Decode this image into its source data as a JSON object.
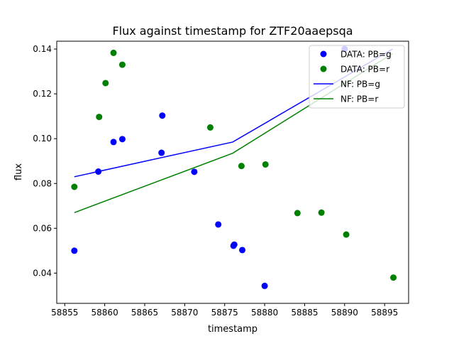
{
  "chart_data": {
    "type": "scatter",
    "title": "Flux against timestamp for ZTF20aaepsqa",
    "xlabel": "timestamp",
    "ylabel": "flux",
    "xlim": [
      58854.0,
      58898.0
    ],
    "ylim": [
      0.0265,
      0.1435
    ],
    "xticks": [
      58855,
      58860,
      58865,
      58870,
      58875,
      58880,
      58885,
      58890,
      58895
    ],
    "yticks": [
      0.04,
      0.06,
      0.08,
      0.1,
      0.12,
      0.14
    ],
    "ytick_labels": [
      "0.04",
      "0.06",
      "0.08",
      "0.10",
      "0.12",
      "0.14"
    ],
    "grid": false,
    "legend_position": "top-right",
    "series": [
      {
        "name": "DATA: PB=g",
        "kind": "scatter",
        "color": "#0000ff",
        "points": [
          [
            58856.2,
            0.05
          ],
          [
            58859.2,
            0.0853
          ],
          [
            58861.1,
            0.0985
          ],
          [
            58862.2,
            0.0998
          ],
          [
            58867.1,
            0.0937
          ],
          [
            58867.2,
            0.1103
          ],
          [
            58871.2,
            0.0852
          ],
          [
            58874.2,
            0.0617
          ],
          [
            58876.1,
            0.0522
          ],
          [
            58876.2,
            0.0527
          ],
          [
            58877.2,
            0.0503
          ],
          [
            58880.0,
            0.0343
          ],
          [
            58890.0,
            0.14
          ]
        ]
      },
      {
        "name": "DATA: PB=r",
        "kind": "scatter",
        "color": "#008000",
        "points": [
          [
            58856.2,
            0.0785
          ],
          [
            58859.3,
            0.1097
          ],
          [
            58860.1,
            0.1248
          ],
          [
            58861.1,
            0.1383
          ],
          [
            58862.2,
            0.133
          ],
          [
            58873.2,
            0.105
          ],
          [
            58877.1,
            0.0878
          ],
          [
            58880.1,
            0.0885
          ],
          [
            58884.1,
            0.0668
          ],
          [
            58887.1,
            0.067
          ],
          [
            58890.2,
            0.0572
          ],
          [
            58896.1,
            0.038
          ]
        ]
      },
      {
        "name": "NF: PB=g",
        "kind": "line",
        "color": "#0000ff",
        "points": [
          [
            58856.2,
            0.083
          ],
          [
            58876.0,
            0.0985
          ],
          [
            58896.0,
            0.14
          ]
        ]
      },
      {
        "name": "NF: PB=r",
        "kind": "line",
        "color": "#008000",
        "points": [
          [
            58856.2,
            0.067
          ],
          [
            58876.0,
            0.0935
          ],
          [
            58896.0,
            0.138
          ]
        ]
      }
    ]
  }
}
